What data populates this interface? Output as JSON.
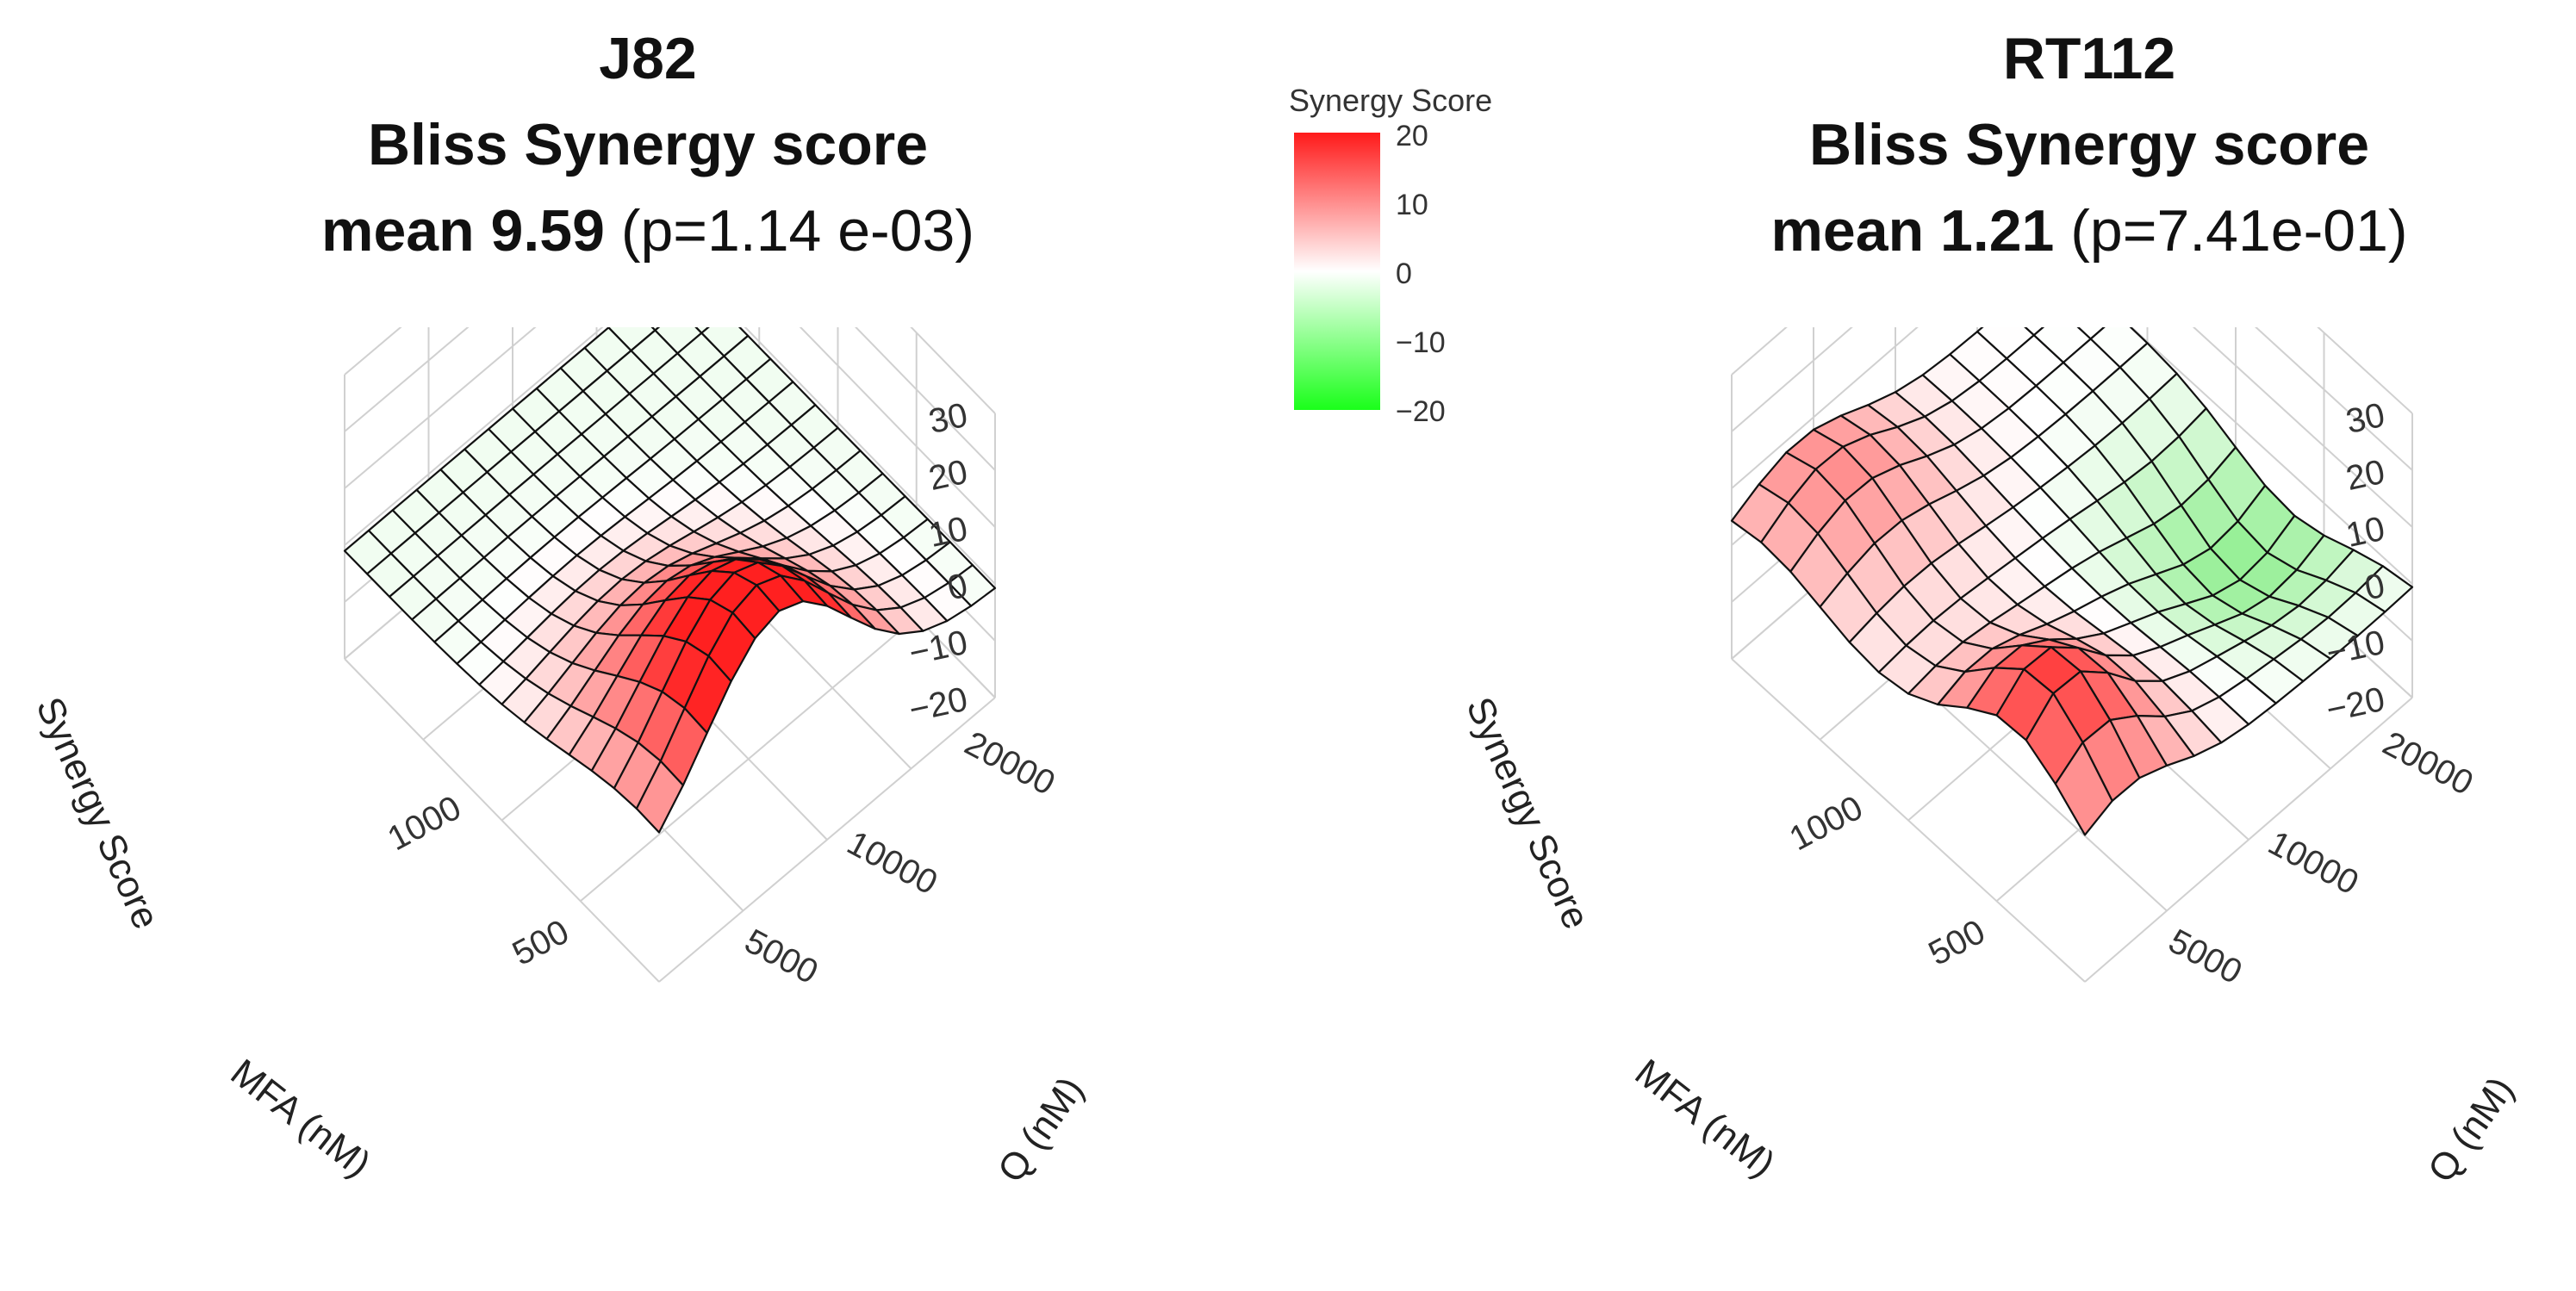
{
  "chart_data": [
    {
      "type": "surface3d",
      "panel": "left",
      "title": [
        "J82",
        "Bliss Synergy score"
      ],
      "mean_label": "mean 9.59",
      "p_label": "(p=1.14 e-03)",
      "zlabel": "Synergy Score",
      "xlabel": "MFA (nM)",
      "ylabel": "Q (nM)",
      "zticks": [
        "30",
        "20",
        "10",
        "0",
        "−10",
        "−20"
      ],
      "z_tick_values": [
        30,
        20,
        10,
        0,
        -10,
        -20
      ],
      "xticks": [
        "1000",
        "500"
      ],
      "yticks": [
        "20000",
        "10000",
        "5000"
      ],
      "zlim": [
        -20,
        30
      ],
      "grid": 14,
      "surface": {
        "model": "peak",
        "peak": 29,
        "center": [
          0.05,
          0.35
        ],
        "spread": [
          0.35,
          0.3
        ]
      }
    },
    {
      "type": "surface3d",
      "panel": "right",
      "title": [
        "RT112",
        "Bliss Synergy score"
      ],
      "mean_label": "mean 1.21",
      "p_label": "(p=7.41e-01)",
      "zlabel": "Synergy Score",
      "xlabel": "MFA (nM)",
      "ylabel": "Q (nM)",
      "zticks": [
        "30",
        "20",
        "10",
        "0",
        "−10",
        "−20"
      ],
      "z_tick_values": [
        30,
        20,
        10,
        0,
        -10,
        -20
      ],
      "xticks": [
        "1000",
        "500"
      ],
      "yticks": [
        "20000",
        "10000",
        "5000"
      ],
      "zlim": [
        -20,
        30
      ],
      "grid": 12,
      "surface": {
        "model": "mixed",
        "peak": 18,
        "secondary": 10,
        "dip": -10
      }
    }
  ],
  "legend": {
    "title": "Synergy Score",
    "ticks": [
      "20",
      "10",
      "0",
      "−10",
      "−20"
    ],
    "max": 20,
    "min": -20,
    "colors": {
      "high": "#ff1a1a",
      "mid": "#ffffff",
      "low": "#1aff1a"
    }
  },
  "colors": {
    "grid": "#d0d0d0",
    "mesh": "#111111",
    "high": "#ff2020",
    "low": "#30e030"
  }
}
